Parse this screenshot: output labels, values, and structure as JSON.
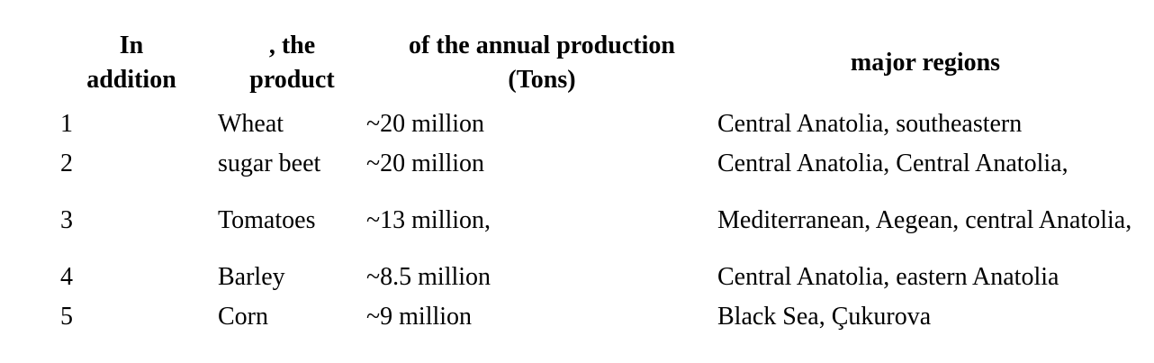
{
  "table": {
    "headers": [
      "In\naddition",
      ", the\nproduct",
      "of the annual production\n(Tons)",
      "major regions"
    ],
    "rows": [
      {
        "rank": "1",
        "product": "Wheat",
        "production": "~20 million",
        "regions": "Central Anatolia, southeastern"
      },
      {
        "rank": "2",
        "product": "sugar beet",
        "production": "~20 million",
        "regions": "Central Anatolia, Central Anatolia,"
      },
      {
        "rank": "3",
        "product": "Tomatoes",
        "production": "~13 million,",
        "regions": "Mediterranean, Aegean, central Anatolia,"
      },
      {
        "rank": "4",
        "product": "Barley",
        "production": "~8.5 million",
        "regions": "Central Anatolia, eastern Anatolia"
      },
      {
        "rank": "5",
        "product": "Corn",
        "production": "~9 million",
        "regions": "Black Sea, Çukurova"
      }
    ]
  }
}
